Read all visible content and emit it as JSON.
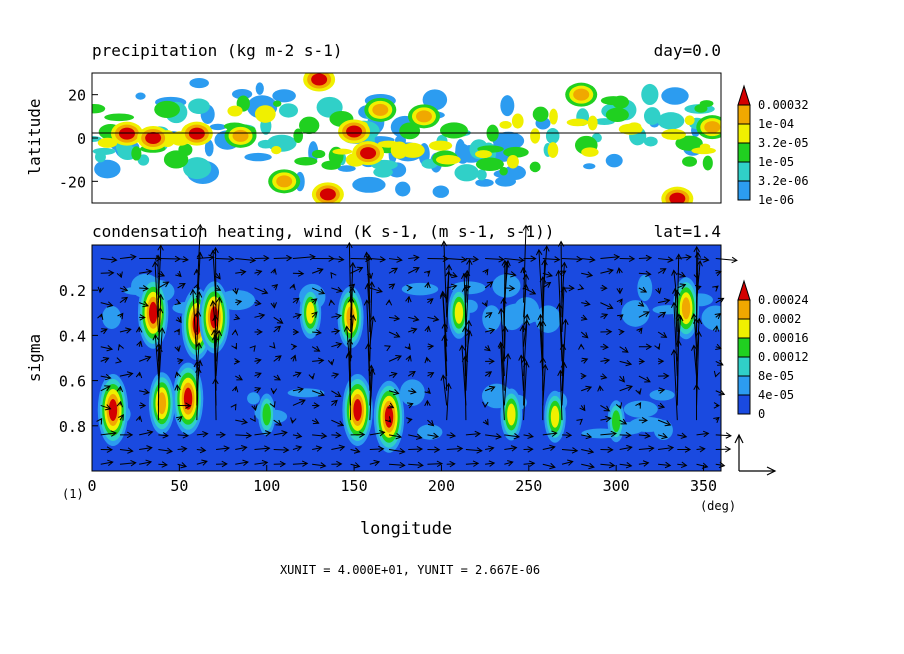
{
  "figure": {
    "panel_label": "(1)",
    "unit_line": "XUNIT = 4.000E+01, YUNIT = 2.667E-06"
  },
  "chart_data": [
    {
      "type": "heatmap",
      "title": "precipitation (kg m-2 s-1)",
      "right_title": "day=0.0",
      "ylabel": "latitude",
      "xlim": [
        0,
        360
      ],
      "ylim": [
        -30,
        30
      ],
      "yticks": [
        20,
        0,
        -20
      ],
      "reference_line_y": 0,
      "colorbar": {
        "levels": [
          "0.00032",
          "1e-04",
          "3.2e-05",
          "1e-05",
          "3.2e-06",
          "1e-06"
        ],
        "colors": [
          "#d40000",
          "#f0a800",
          "#f0f000",
          "#20d020",
          "#30d0c8",
          "#2c9cf0",
          "#ffffff"
        ]
      },
      "features": [
        {
          "lon": 20,
          "lat": 2,
          "level": 6
        },
        {
          "lon": 35,
          "lat": 0,
          "level": 6
        },
        {
          "lon": 60,
          "lat": 2,
          "level": 6
        },
        {
          "lon": 85,
          "lat": 1,
          "level": 5
        },
        {
          "lon": 150,
          "lat": 3,
          "level": 6
        },
        {
          "lon": 158,
          "lat": -7,
          "level": 6
        },
        {
          "lon": 130,
          "lat": 27,
          "level": 6
        },
        {
          "lon": 135,
          "lat": -26,
          "level": 6
        },
        {
          "lon": 165,
          "lat": 13,
          "level": 5
        },
        {
          "lon": 190,
          "lat": 10,
          "level": 5
        },
        {
          "lon": 280,
          "lat": 20,
          "level": 5
        },
        {
          "lon": 335,
          "lat": -28,
          "level": 6
        },
        {
          "lon": 355,
          "lat": 5,
          "level": 5
        },
        {
          "lon": 110,
          "lat": -20,
          "level": 5
        }
      ]
    },
    {
      "type": "heatmap",
      "title": "condensation heating, wind (K s-1, (m s-1, s-1))",
      "right_title": "lat=1.4",
      "xlabel": "longitude",
      "x_unit": "(deg)",
      "ylabel": "sigma",
      "xlim": [
        0,
        360
      ],
      "ylim": [
        0.0,
        1.0
      ],
      "y_inverted": true,
      "xticks": [
        0,
        50,
        100,
        150,
        200,
        250,
        300,
        350
      ],
      "yticks": [
        0.2,
        0.4,
        0.6,
        0.8
      ],
      "colorbar": {
        "levels": [
          "0.00024",
          "0.0002",
          "0.00016",
          "0.00012",
          "8e-05",
          "4e-05",
          "0"
        ],
        "colors": [
          "#d40000",
          "#f0a800",
          "#f0f000",
          "#20d020",
          "#30d0c8",
          "#2c9cf0",
          "#1a4ae0"
        ]
      },
      "features": [
        {
          "lon": 35,
          "sigma": 0.3,
          "level": 6
        },
        {
          "lon": 60,
          "sigma": 0.35,
          "level": 6
        },
        {
          "lon": 70,
          "sigma": 0.32,
          "level": 6
        },
        {
          "lon": 148,
          "sigma": 0.32,
          "level": 5
        },
        {
          "lon": 12,
          "sigma": 0.73,
          "level": 6
        },
        {
          "lon": 40,
          "sigma": 0.7,
          "level": 5
        },
        {
          "lon": 55,
          "sigma": 0.68,
          "level": 6
        },
        {
          "lon": 152,
          "sigma": 0.73,
          "level": 6
        },
        {
          "lon": 170,
          "sigma": 0.76,
          "level": 6
        },
        {
          "lon": 210,
          "sigma": 0.3,
          "level": 4
        },
        {
          "lon": 240,
          "sigma": 0.75,
          "level": 4
        },
        {
          "lon": 265,
          "sigma": 0.76,
          "level": 4
        },
        {
          "lon": 340,
          "sigma": 0.28,
          "level": 5
        },
        {
          "lon": 300,
          "sigma": 0.78,
          "level": 3
        },
        {
          "lon": 100,
          "sigma": 0.75,
          "level": 3
        },
        {
          "lon": 125,
          "sigma": 0.3,
          "level": 4
        }
      ]
    }
  ]
}
